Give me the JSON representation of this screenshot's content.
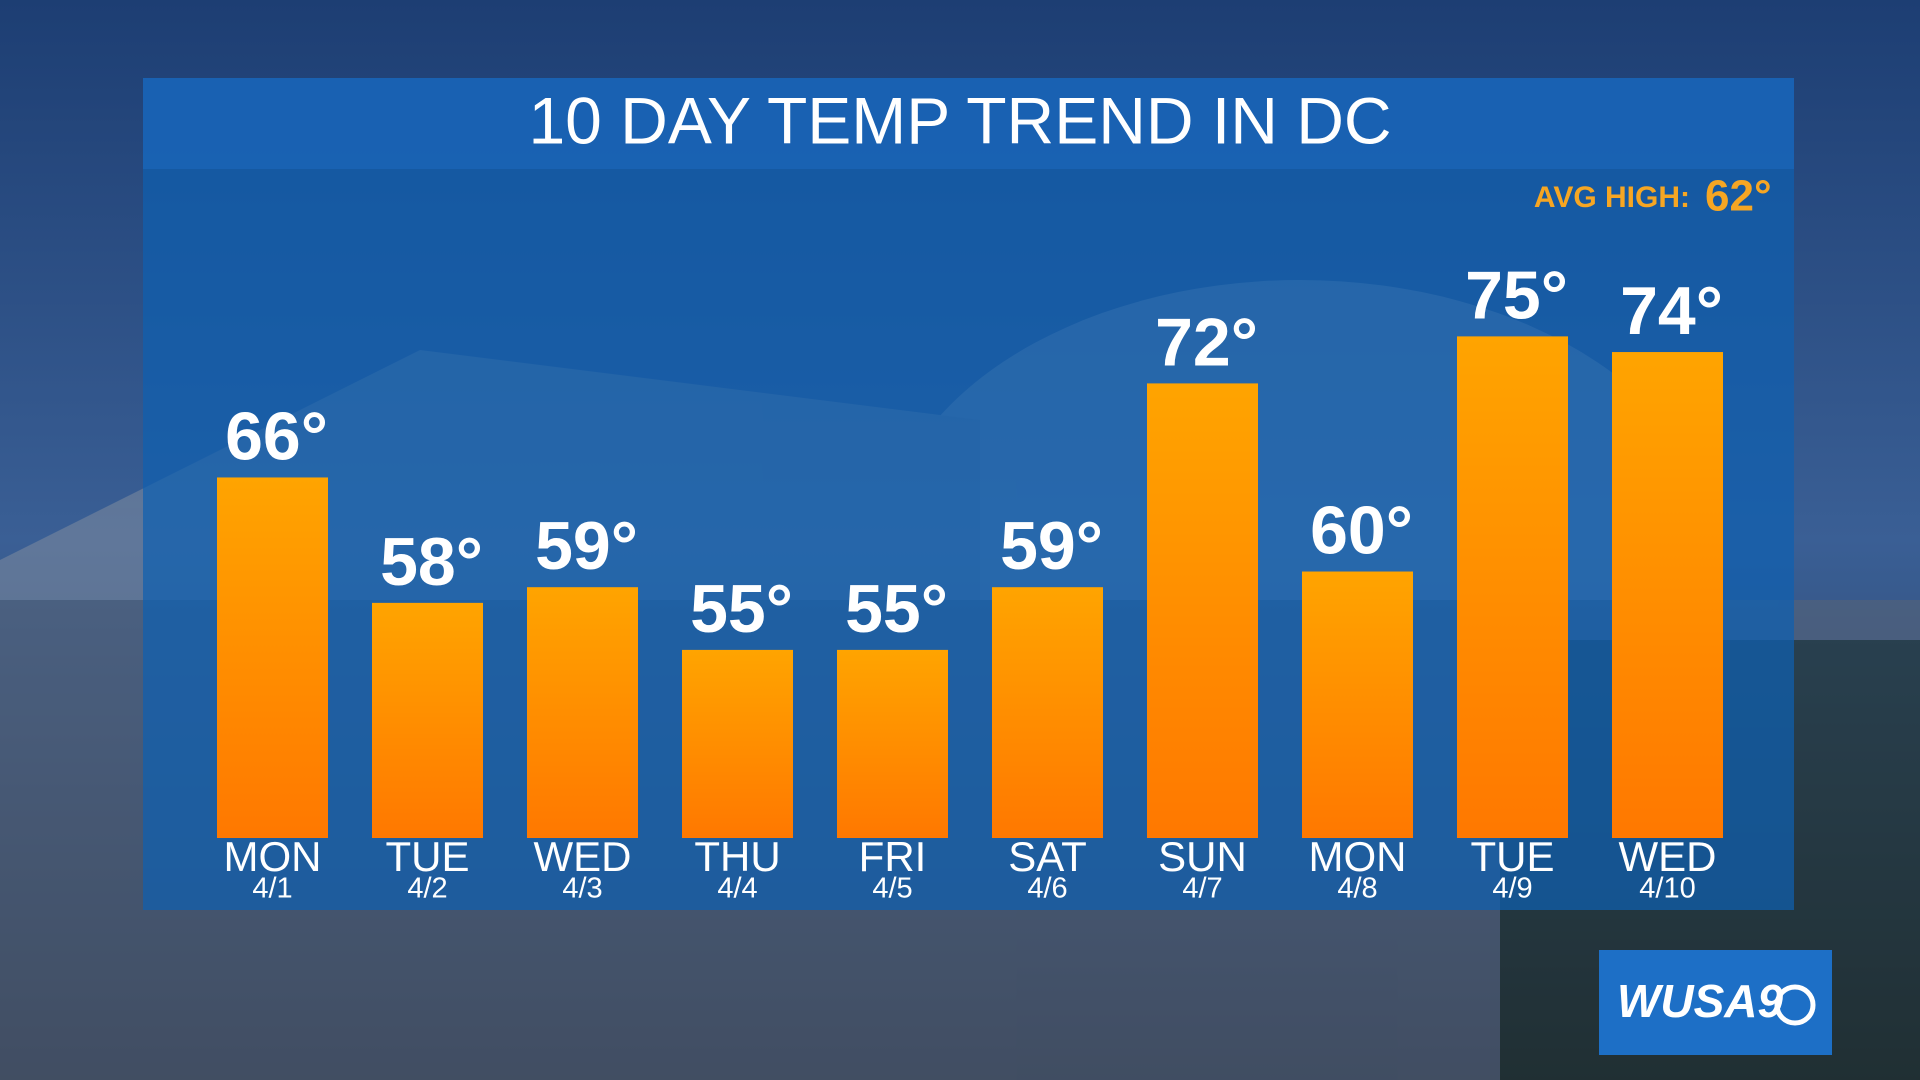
{
  "chart_data": {
    "type": "bar",
    "title": "10 DAY TEMP TREND IN DC",
    "categories": [
      "MON",
      "TUE",
      "WED",
      "THU",
      "FRI",
      "SAT",
      "SUN",
      "MON",
      "TUE",
      "WED"
    ],
    "dates": [
      "4/1",
      "4/2",
      "4/3",
      "4/4",
      "4/5",
      "4/6",
      "4/7",
      "4/8",
      "4/9",
      "4/10"
    ],
    "values": [
      66,
      58,
      59,
      55,
      55,
      59,
      72,
      60,
      75,
      74
    ],
    "value_labels": [
      "66°",
      "58°",
      "59°",
      "55°",
      "55°",
      "59°",
      "72°",
      "60°",
      "75°",
      "74°"
    ],
    "color": "#ff9000",
    "ylim": [
      43,
      80
    ],
    "annotations": [
      "AVG HIGH:",
      "62°"
    ]
  },
  "logo": "WUSA9"
}
